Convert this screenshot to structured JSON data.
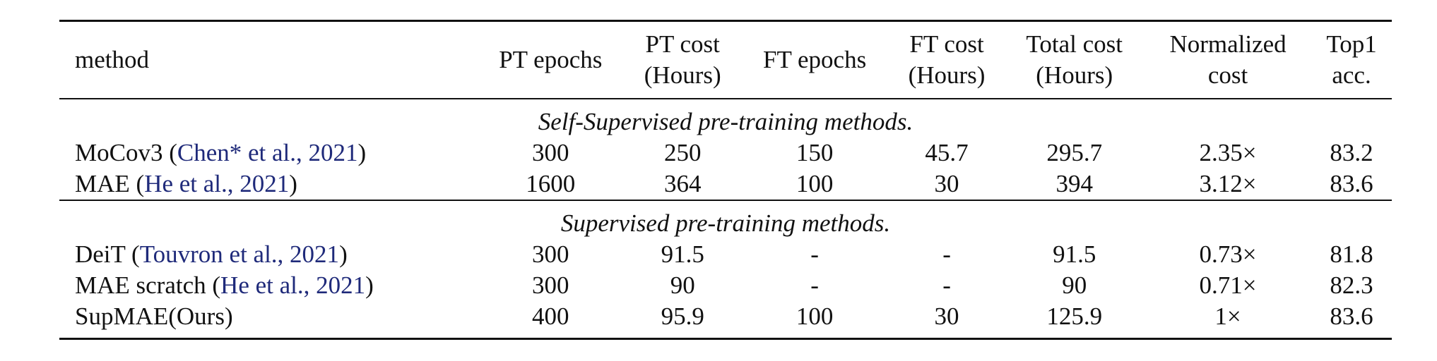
{
  "table": {
    "headers": [
      {
        "line1": "method",
        "line2": ""
      },
      {
        "line1": "PT epochs",
        "line2": ""
      },
      {
        "line1": "PT cost",
        "line2": "(Hours)"
      },
      {
        "line1": "FT epochs",
        "line2": ""
      },
      {
        "line1": "FT cost",
        "line2": "(Hours)"
      },
      {
        "line1": "Total cost",
        "line2": "(Hours)"
      },
      {
        "line1": "Normalized",
        "line2": "cost"
      },
      {
        "line1": "Top1",
        "line2": "acc."
      }
    ],
    "sections": [
      {
        "title": "Self-Supervised pre-training methods.",
        "rows": [
          {
            "name": "MoCov3",
            "cite": "Chen* et al., 2021",
            "pt_epochs": "300",
            "pt_cost": "250",
            "ft_epochs": "150",
            "ft_cost": "45.7",
            "total_cost": "295.7",
            "normalized": "2.35×",
            "top1": "83.2"
          },
          {
            "name": "MAE",
            "cite": "He et al., 2021",
            "pt_epochs": "1600",
            "pt_cost": "364",
            "ft_epochs": "100",
            "ft_cost": "30",
            "total_cost": "394",
            "normalized": "3.12×",
            "top1": "83.6"
          }
        ]
      },
      {
        "title": "Supervised pre-training methods.",
        "rows": [
          {
            "name": "DeiT",
            "cite": "Touvron et al., 2021",
            "pt_epochs": "300",
            "pt_cost": "91.5",
            "ft_epochs": "-",
            "ft_cost": "-",
            "total_cost": "91.5",
            "normalized": "0.73×",
            "top1": "81.8"
          },
          {
            "name": "MAE scratch",
            "cite": "He et al., 2021",
            "pt_epochs": "300",
            "pt_cost": "90",
            "ft_epochs": "-",
            "ft_cost": "-",
            "total_cost": "90",
            "normalized": "0.71×",
            "top1": "82.3"
          },
          {
            "name": "SupMAE(Ours)",
            "cite": "",
            "pt_epochs": "400",
            "pt_cost": "95.9",
            "ft_epochs": "100",
            "ft_cost": "30",
            "total_cost": "125.9",
            "normalized": "1×",
            "top1": "83.6"
          }
        ]
      }
    ]
  }
}
